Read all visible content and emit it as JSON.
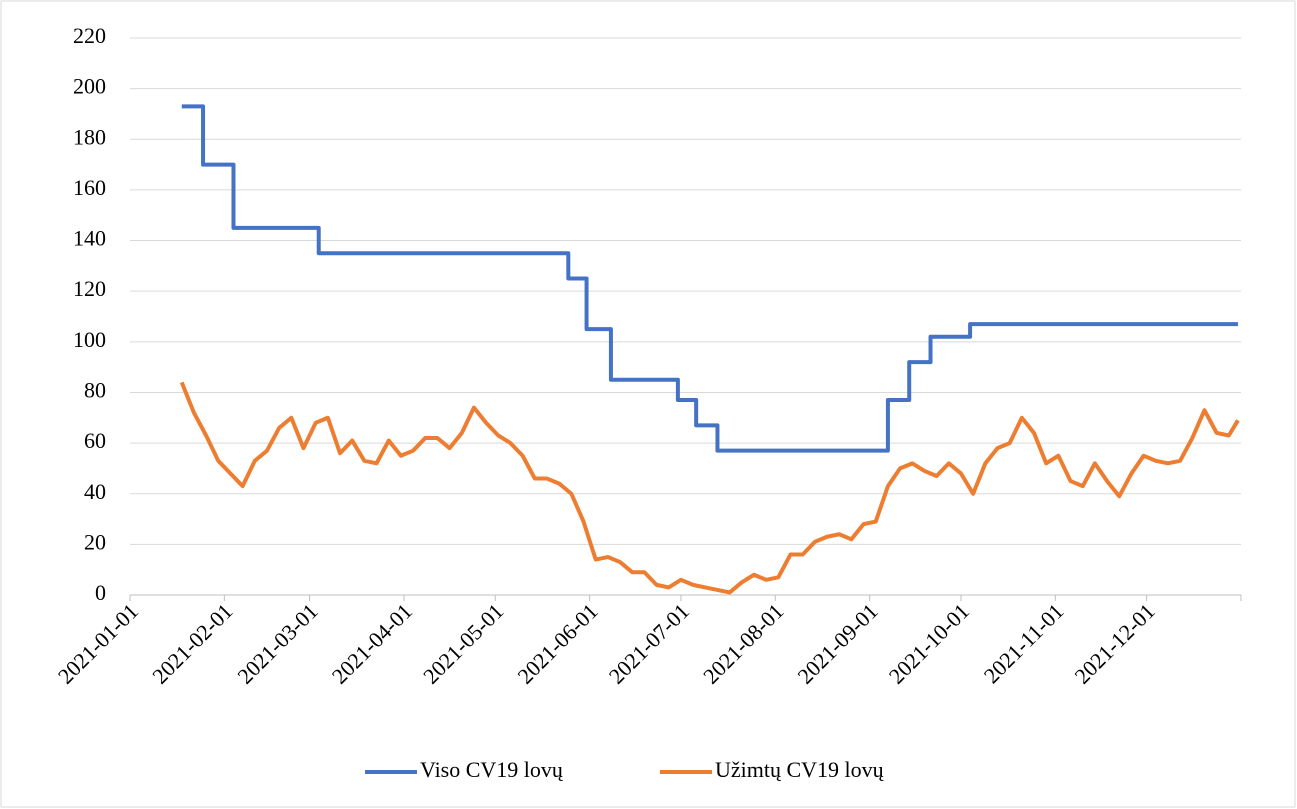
{
  "chart_data": {
    "type": "line",
    "xlim": [
      "2021-01-01",
      "2022-01-01"
    ],
    "xticks": [
      "2021-01-01",
      "2021-02-01",
      "2021-03-01",
      "2021-04-01",
      "2021-05-01",
      "2021-06-01",
      "2021-07-01",
      "2021-08-01",
      "2021-09-01",
      "2021-10-01",
      "2021-11-01",
      "2021-12-01"
    ],
    "ylim": [
      0,
      220
    ],
    "yticks": [
      0,
      20,
      40,
      60,
      80,
      100,
      120,
      140,
      160,
      180,
      200,
      220
    ],
    "grid": true,
    "legend": "bottom",
    "series": [
      {
        "name": "Viso CV19 lovų",
        "color": "#4472c4",
        "step": "post",
        "x": [
          "2021-01-18",
          "2021-01-25",
          "2021-02-04",
          "2021-03-04",
          "2021-05-25",
          "2021-05-31",
          "2021-06-08",
          "2021-06-30",
          "2021-07-06",
          "2021-07-13",
          "2021-09-07",
          "2021-09-14",
          "2021-09-21",
          "2021-10-04",
          "2021-12-31"
        ],
        "values": [
          193,
          170,
          145,
          135,
          125,
          105,
          85,
          77,
          67,
          57,
          77,
          92,
          102,
          107,
          107
        ]
      },
      {
        "name": "Užimtų CV19 lovų",
        "color": "#ed7d31",
        "x": [
          "2021-01-18",
          "2021-01-22",
          "2021-01-26",
          "2021-01-30",
          "2021-02-03",
          "2021-02-07",
          "2021-02-11",
          "2021-02-15",
          "2021-02-19",
          "2021-02-23",
          "2021-02-27",
          "2021-03-03",
          "2021-03-07",
          "2021-03-11",
          "2021-03-15",
          "2021-03-19",
          "2021-03-23",
          "2021-03-27",
          "2021-03-31",
          "2021-04-04",
          "2021-04-08",
          "2021-04-12",
          "2021-04-16",
          "2021-04-20",
          "2021-04-24",
          "2021-04-28",
          "2021-05-02",
          "2021-05-06",
          "2021-05-10",
          "2021-05-14",
          "2021-05-18",
          "2021-05-22",
          "2021-05-26",
          "2021-05-30",
          "2021-06-03",
          "2021-06-07",
          "2021-06-11",
          "2021-06-15",
          "2021-06-19",
          "2021-06-23",
          "2021-06-27",
          "2021-07-01",
          "2021-07-05",
          "2021-07-09",
          "2021-07-13",
          "2021-07-17",
          "2021-07-21",
          "2021-07-25",
          "2021-07-29",
          "2021-08-02",
          "2021-08-06",
          "2021-08-10",
          "2021-08-14",
          "2021-08-18",
          "2021-08-22",
          "2021-08-26",
          "2021-08-30",
          "2021-09-03",
          "2021-09-07",
          "2021-09-11",
          "2021-09-15",
          "2021-09-19",
          "2021-09-23",
          "2021-09-27",
          "2021-10-01",
          "2021-10-05",
          "2021-10-09",
          "2021-10-13",
          "2021-10-17",
          "2021-10-21",
          "2021-10-25",
          "2021-10-29",
          "2021-11-02",
          "2021-11-06",
          "2021-11-10",
          "2021-11-14",
          "2021-11-18",
          "2021-11-22",
          "2021-11-26",
          "2021-11-30",
          "2021-12-04",
          "2021-12-08",
          "2021-12-12",
          "2021-12-16",
          "2021-12-20",
          "2021-12-24",
          "2021-12-28",
          "2021-12-31"
        ],
        "values": [
          84,
          72,
          63,
          53,
          48,
          43,
          53,
          57,
          66,
          70,
          58,
          68,
          70,
          56,
          61,
          53,
          52,
          61,
          55,
          57,
          62,
          62,
          58,
          64,
          74,
          68,
          63,
          60,
          55,
          46,
          46,
          44,
          40,
          29,
          14,
          15,
          13,
          9,
          9,
          4,
          3,
          6,
          4,
          3,
          2,
          1,
          5,
          8,
          6,
          7,
          16,
          16,
          21,
          23,
          24,
          22,
          28,
          29,
          43,
          50,
          52,
          49,
          47,
          52,
          48,
          40,
          52,
          58,
          60,
          70,
          64,
          52,
          55,
          45,
          43,
          52,
          45,
          39,
          48,
          55,
          53,
          52,
          53,
          62,
          73,
          64,
          63,
          69
        ]
      }
    ]
  }
}
